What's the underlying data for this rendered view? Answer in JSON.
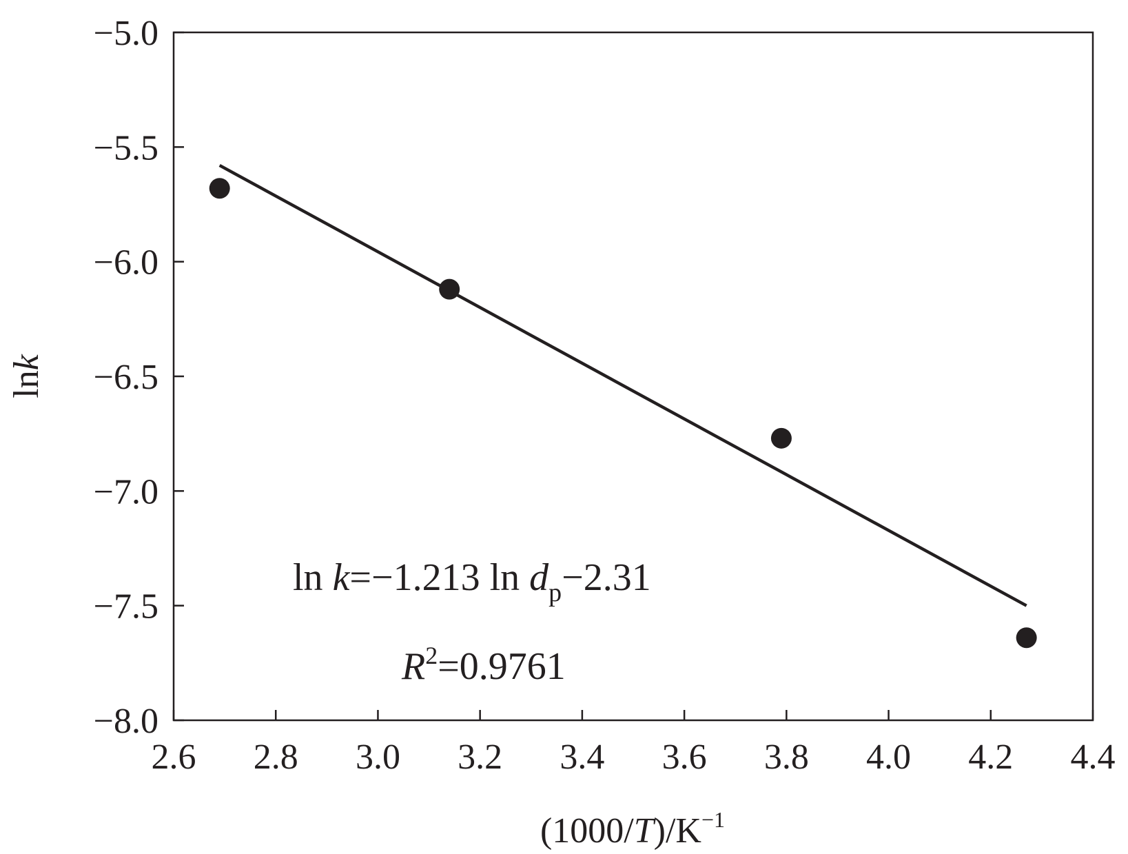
{
  "chart_data": {
    "type": "scatter",
    "xlabel": {
      "pre": "(1000/",
      "italic": "T",
      "post": ")/K",
      "sup": "−1"
    },
    "ylabel": {
      "pre": "ln",
      "italic": "k"
    },
    "xlim": [
      2.6,
      4.4
    ],
    "ylim": [
      -8.0,
      -5.0
    ],
    "x_ticks": [
      "2.6",
      "2.8",
      "3.0",
      "3.2",
      "3.4",
      "3.6",
      "3.8",
      "4.0",
      "4.2",
      "4.4"
    ],
    "y_ticks": [
      "−5.0",
      "−5.5",
      "−6.0",
      "−6.5",
      "−7.0",
      "−7.5",
      "−8.0"
    ],
    "grid": false,
    "series": [
      {
        "marker": "filled-circle",
        "color": "#231f20",
        "x": [
          2.69,
          3.14,
          3.79,
          4.27
        ],
        "y": [
          -5.68,
          -6.12,
          -6.77,
          -7.64
        ]
      }
    ],
    "fit_line": {
      "x": [
        2.69,
        4.27
      ],
      "y": [
        -5.58,
        -7.5
      ],
      "color": "#231f20"
    },
    "annotations": {
      "equation": {
        "t1": "ln ",
        "t2": "k",
        "t3": "=−1.213 ln ",
        "t4": "d",
        "t5": "p",
        "t6": "−2.31"
      },
      "r2": {
        "t1": "R",
        "t2": "2",
        "t3": "=0.9761"
      }
    }
  }
}
